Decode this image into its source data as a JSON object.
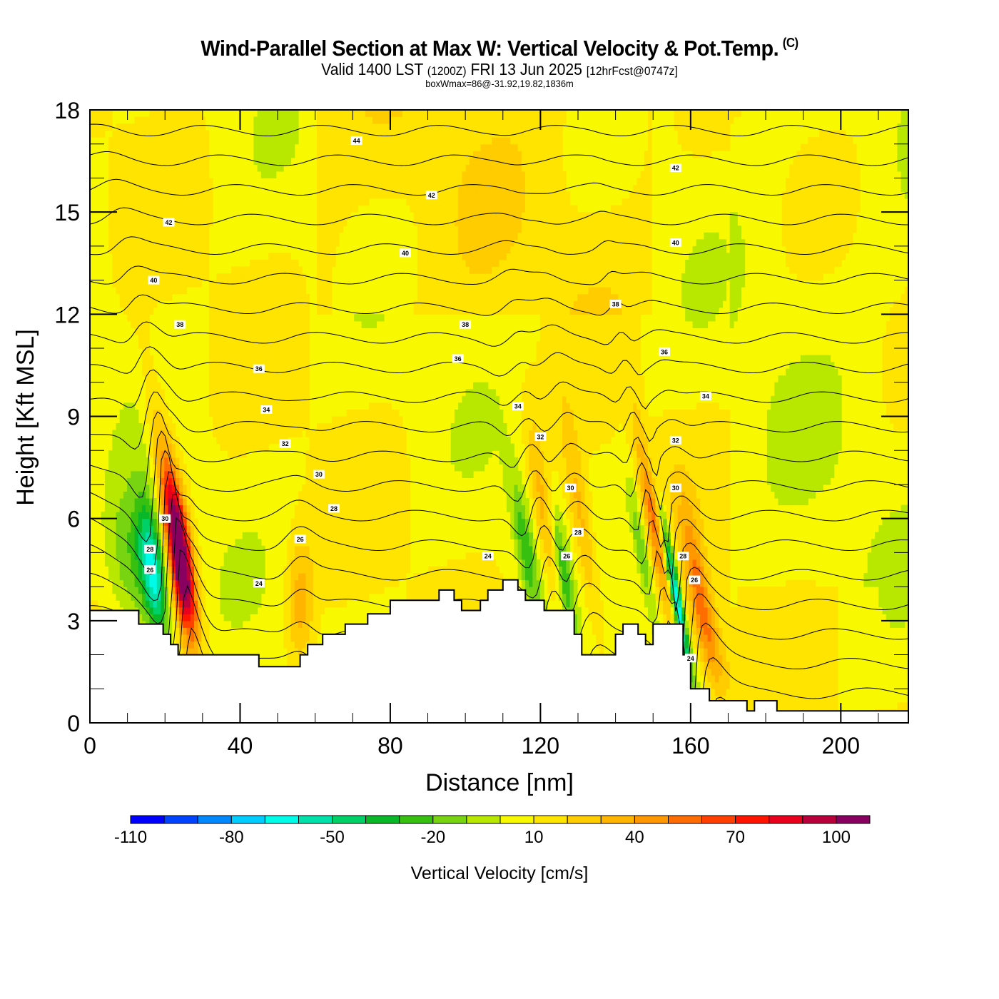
{
  "header": {
    "title": "Wind-Parallel Section at Max W: Vertical Velocity & Pot.Temp.",
    "copyright": "(C)",
    "valid_prefix": "Valid 1400 LST",
    "valid_utc": "(1200Z)",
    "valid_date": "FRI 13 Jun 2025",
    "forecast": "[12hrFcst@0747z]",
    "box_wmax": "boxWmax=86@-31.92,19.82,1836m"
  },
  "chart_data": {
    "type": "heatmap",
    "title": "Wind-Parallel Section at Max W: Vertical Velocity & Pot.Temp.",
    "xlabel": "Distance [nm]",
    "ylabel": "Height [Kft MSL]",
    "xlim": [
      0,
      218
    ],
    "ylim": [
      0,
      18
    ],
    "x_ticks": [
      0,
      40,
      80,
      120,
      160,
      200
    ],
    "y_ticks": [
      0,
      3,
      6,
      9,
      12,
      15,
      18
    ],
    "colorbar": {
      "title": "Vertical Velocity [cm/s]",
      "bounds": [
        -110,
        -100,
        -90,
        -80,
        -70,
        -60,
        -50,
        -40,
        -30,
        -20,
        -10,
        0,
        10,
        20,
        30,
        40,
        50,
        60,
        70,
        80,
        90,
        100,
        110
      ],
      "tick_labels": [
        -110,
        -80,
        -50,
        -20,
        10,
        40,
        70,
        100
      ],
      "colors": [
        "#0000ff",
        "#0044ff",
        "#0088ff",
        "#00ccff",
        "#00fbe8",
        "#00e0aa",
        "#00d068",
        "#08b828",
        "#38c010",
        "#78d410",
        "#b8e800",
        "#f8f800",
        "#ffe400",
        "#ffcc00",
        "#ffb400",
        "#ff9800",
        "#ff6c00",
        "#ff4000",
        "#ff1400",
        "#e8001c",
        "#b8003c",
        "#880060"
      ]
    },
    "contour_field": "Potential Temperature (deg C, interval 2)",
    "contour_labels": [
      {
        "value": 44,
        "x": 71,
        "y": 17.1
      },
      {
        "value": 42,
        "x": 21,
        "y": 14.7
      },
      {
        "value": 42,
        "x": 91,
        "y": 15.5
      },
      {
        "value": 42,
        "x": 156,
        "y": 16.3
      },
      {
        "value": 40,
        "x": 17,
        "y": 13.0
      },
      {
        "value": 40,
        "x": 84,
        "y": 13.8
      },
      {
        "value": 40,
        "x": 156,
        "y": 14.1
      },
      {
        "value": 38,
        "x": 24,
        "y": 11.7
      },
      {
        "value": 38,
        "x": 100,
        "y": 11.7
      },
      {
        "value": 38,
        "x": 140,
        "y": 12.3
      },
      {
        "value": 36,
        "x": 45,
        "y": 10.4
      },
      {
        "value": 36,
        "x": 98,
        "y": 10.7
      },
      {
        "value": 36,
        "x": 153,
        "y": 10.9
      },
      {
        "value": 34,
        "x": 47,
        "y": 9.2
      },
      {
        "value": 34,
        "x": 114,
        "y": 9.3
      },
      {
        "value": 34,
        "x": 164,
        "y": 9.6
      },
      {
        "value": 32,
        "x": 52,
        "y": 8.2
      },
      {
        "value": 32,
        "x": 120,
        "y": 8.4
      },
      {
        "value": 32,
        "x": 156,
        "y": 8.3
      },
      {
        "value": 30,
        "x": 61,
        "y": 7.3
      },
      {
        "value": 30,
        "x": 20,
        "y": 6.0
      },
      {
        "value": 30,
        "x": 128,
        "y": 6.9
      },
      {
        "value": 30,
        "x": 156,
        "y": 6.9
      },
      {
        "value": 28,
        "x": 65,
        "y": 6.3
      },
      {
        "value": 28,
        "x": 16,
        "y": 5.1
      },
      {
        "value": 28,
        "x": 130,
        "y": 5.6
      },
      {
        "value": 28,
        "x": 158,
        "y": 4.9
      },
      {
        "value": 26,
        "x": 16,
        "y": 4.5
      },
      {
        "value": 26,
        "x": 56,
        "y": 5.4
      },
      {
        "value": 26,
        "x": 127,
        "y": 4.9
      },
      {
        "value": 26,
        "x": 161,
        "y": 4.2
      },
      {
        "value": 24,
        "x": 45,
        "y": 4.1
      },
      {
        "value": 24,
        "x": 106,
        "y": 4.9
      },
      {
        "value": 24,
        "x": 160,
        "y": 1.9
      }
    ],
    "features": [
      {
        "name": "strong updraft",
        "x_range": [
          21,
          27
        ],
        "z_range": [
          2.5,
          7.5
        ],
        "max_w": 100
      },
      {
        "name": "downdraft",
        "x_range": [
          14,
          20
        ],
        "z_range": [
          3.0,
          6.0
        ],
        "min_w": -60
      },
      {
        "name": "downdraft",
        "x_range": [
          154,
          159
        ],
        "z_range": [
          2.0,
          6.0
        ],
        "min_w": -80
      }
    ]
  }
}
